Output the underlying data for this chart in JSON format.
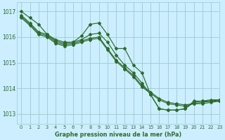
{
  "title": "Graphe pression niveau de la mer (hPa)",
  "bg_color": "#cceeff",
  "grid_color": "#99cccc",
  "line_color": "#2d6b2d",
  "xlim": [
    -0.5,
    23
  ],
  "ylim": [
    1012.6,
    1017.35
  ],
  "yticks": [
    1013,
    1014,
    1015,
    1016,
    1017
  ],
  "xticks": [
    0,
    1,
    2,
    3,
    4,
    5,
    6,
    7,
    8,
    9,
    10,
    11,
    12,
    13,
    14,
    15,
    16,
    17,
    18,
    19,
    20,
    21,
    22,
    23
  ],
  "series": [
    [
      1017.0,
      1016.75,
      1016.5,
      1016.1,
      1015.9,
      1015.8,
      1015.8,
      1016.05,
      1016.5,
      1016.55,
      1016.1,
      1015.55,
      1015.55,
      1014.9,
      1014.6,
      1013.75,
      1013.2,
      1013.15,
      1013.15,
      1013.2,
      1013.5,
      1013.5,
      1013.55,
      1013.55
    ],
    [
      1016.85,
      1016.55,
      1016.2,
      1016.1,
      1015.85,
      1015.75,
      1015.8,
      1015.9,
      1016.1,
      1016.15,
      1015.8,
      1015.3,
      1014.9,
      1014.6,
      1014.2,
      1013.75,
      1013.2,
      1013.15,
      1013.15,
      1013.2,
      1013.45,
      1013.5,
      1013.5,
      1013.55
    ],
    [
      1016.8,
      1016.5,
      1016.15,
      1016.05,
      1015.8,
      1015.7,
      1015.75,
      1015.85,
      1015.95,
      1016.0,
      1015.55,
      1015.1,
      1014.8,
      1014.5,
      1014.1,
      1013.85,
      1013.6,
      1013.45,
      1013.4,
      1013.35,
      1013.4,
      1013.45,
      1013.5,
      1013.5
    ],
    [
      1016.75,
      1016.45,
      1016.1,
      1016.0,
      1015.75,
      1015.65,
      1015.7,
      1015.8,
      1015.9,
      1015.95,
      1015.5,
      1015.05,
      1014.75,
      1014.45,
      1014.05,
      1013.8,
      1013.55,
      1013.4,
      1013.35,
      1013.3,
      1013.4,
      1013.4,
      1013.45,
      1013.5
    ]
  ],
  "figsize": [
    3.2,
    2.0
  ],
  "dpi": 100
}
